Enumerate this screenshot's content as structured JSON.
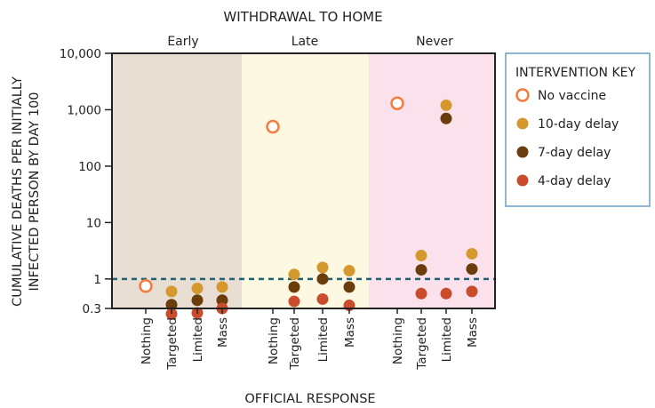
{
  "chart_data": {
    "type": "scatter",
    "title": "WITHDRAWAL TO HOME",
    "xlabel": "OFFICIAL RESPONSE",
    "ylabel": [
      "CUMULATIVE DEATHS PER INITIALLY",
      "INFECTED PERSON BY DAY 100"
    ],
    "yscale": "log",
    "ylim": [
      0.3,
      10000
    ],
    "yticks": [
      {
        "value": 10000,
        "label": "10,000"
      },
      {
        "value": 1000,
        "label": "1,000"
      },
      {
        "value": 100,
        "label": "100"
      },
      {
        "value": 10,
        "label": "10"
      },
      {
        "value": 1,
        "label": "1"
      },
      {
        "value": 0.3,
        "label": "0.3"
      }
    ],
    "reference_line": {
      "value": 1,
      "style": "dashed",
      "color": "#1f5f73"
    },
    "groups": [
      {
        "name": "Early",
        "color": "#e8ddd3",
        "categories": [
          "Nothing",
          "Targeted",
          "Limited",
          "Mass"
        ]
      },
      {
        "name": "Late",
        "color": "#fdf8e2",
        "categories": [
          "Nothing",
          "Targeted",
          "Limited",
          "Mass"
        ]
      },
      {
        "name": "Never",
        "color": "#fbe1ec",
        "categories": [
          "Nothing",
          "Targeted",
          "Limited",
          "Mass"
        ]
      }
    ],
    "series": [
      {
        "name": "No vaccine",
        "color": "#f47c3c",
        "marker": "open-circle",
        "values": [
          0.75,
          null,
          null,
          null,
          500,
          null,
          null,
          null,
          1300,
          null,
          null,
          null
        ]
      },
      {
        "name": "10-day delay",
        "color": "#d4982e",
        "marker": "filled-circle",
        "values": [
          null,
          0.6,
          0.68,
          0.72,
          null,
          1.2,
          1.6,
          1.4,
          null,
          2.6,
          1200,
          2.8
        ]
      },
      {
        "name": "7-day delay",
        "color": "#6b3c0c",
        "marker": "filled-circle",
        "values": [
          null,
          0.35,
          0.42,
          0.42,
          null,
          0.72,
          1.0,
          0.72,
          null,
          1.45,
          700,
          1.5
        ]
      },
      {
        "name": "4-day delay",
        "color": "#c94c2c",
        "marker": "filled-circle",
        "values": [
          null,
          0.24,
          0.25,
          0.3,
          null,
          0.4,
          0.44,
          0.34,
          null,
          0.55,
          0.55,
          0.6
        ]
      }
    ],
    "legend": {
      "title": "INTERVENTION KEY",
      "position": "right",
      "border_color": "#6a9ec7"
    }
  }
}
